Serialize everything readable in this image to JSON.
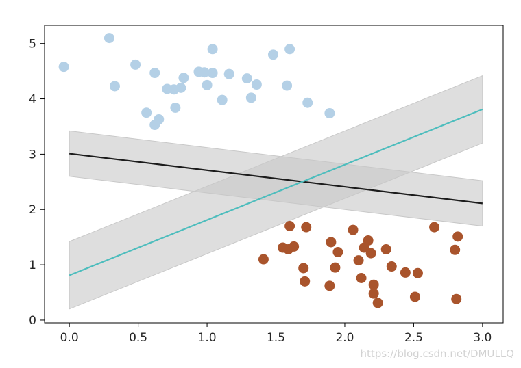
{
  "chart_data": {
    "type": "scatter",
    "xlim": [
      -0.18,
      3.15
    ],
    "ylim": [
      -0.05,
      5.33
    ],
    "x_ticks": [
      0.0,
      0.5,
      1.0,
      1.5,
      2.0,
      2.5,
      3.0
    ],
    "x_tick_labels": [
      "0.0",
      "0.5",
      "1.0",
      "1.5",
      "2.0",
      "2.5",
      "3.0"
    ],
    "y_ticks": [
      0,
      1,
      2,
      3,
      4,
      5
    ],
    "y_tick_labels": [
      "0",
      "1",
      "2",
      "3",
      "4",
      "5"
    ],
    "grid": false,
    "series": [
      {
        "kind": "scatter",
        "color": "#b4d0e6",
        "points": [
          [
            -0.04,
            4.58
          ],
          [
            0.29,
            5.1
          ],
          [
            0.33,
            4.23
          ],
          [
            0.48,
            4.62
          ],
          [
            0.56,
            3.75
          ],
          [
            0.62,
            4.47
          ],
          [
            0.62,
            3.53
          ],
          [
            0.65,
            3.63
          ],
          [
            0.71,
            4.18
          ],
          [
            0.76,
            4.17
          ],
          [
            0.77,
            3.84
          ],
          [
            0.81,
            4.2
          ],
          [
            0.83,
            4.38
          ],
          [
            0.94,
            4.49
          ],
          [
            0.98,
            4.48
          ],
          [
            1.0,
            4.25
          ],
          [
            1.04,
            4.9
          ],
          [
            1.04,
            4.47
          ],
          [
            1.11,
            3.98
          ],
          [
            1.16,
            4.45
          ],
          [
            1.29,
            4.37
          ],
          [
            1.32,
            4.02
          ],
          [
            1.36,
            4.26
          ],
          [
            1.48,
            4.8
          ],
          [
            1.58,
            4.24
          ],
          [
            1.6,
            4.9
          ],
          [
            1.73,
            3.93
          ],
          [
            1.89,
            3.74
          ]
        ]
      },
      {
        "kind": "scatter",
        "color": "#a9542c",
        "points": [
          [
            1.41,
            1.1
          ],
          [
            1.55,
            1.31
          ],
          [
            1.59,
            1.28
          ],
          [
            1.6,
            1.7
          ],
          [
            1.63,
            1.33
          ],
          [
            1.7,
            0.94
          ],
          [
            1.71,
            0.7
          ],
          [
            1.72,
            1.68
          ],
          [
            1.89,
            0.62
          ],
          [
            1.9,
            1.41
          ],
          [
            1.93,
            0.95
          ],
          [
            1.95,
            1.23
          ],
          [
            2.06,
            1.63
          ],
          [
            2.1,
            1.08
          ],
          [
            2.12,
            0.76
          ],
          [
            2.14,
            1.31
          ],
          [
            2.17,
            1.44
          ],
          [
            2.19,
            1.21
          ],
          [
            2.21,
            0.64
          ],
          [
            2.21,
            0.48
          ],
          [
            2.24,
            0.31
          ],
          [
            2.3,
            1.28
          ],
          [
            2.34,
            0.97
          ],
          [
            2.44,
            0.86
          ],
          [
            2.51,
            0.42
          ],
          [
            2.53,
            0.85
          ],
          [
            2.65,
            1.68
          ],
          [
            2.8,
            1.27
          ],
          [
            2.81,
            0.38
          ],
          [
            2.82,
            1.51
          ]
        ]
      },
      {
        "kind": "line",
        "color": "#1c1c1c",
        "x": [
          0.0,
          3.0
        ],
        "y": [
          3.01,
          2.11
        ],
        "band_lower": [
          2.6,
          1.7
        ],
        "band_upper": [
          3.42,
          2.52
        ]
      },
      {
        "kind": "line",
        "color": "#4dbdbd",
        "x": [
          0.0,
          3.0
        ],
        "y": [
          0.81,
          3.81
        ],
        "band_lower": [
          0.2,
          3.2
        ],
        "band_upper": [
          1.42,
          4.42
        ]
      }
    ],
    "band_color": "#c8c8c8"
  },
  "watermark": "https://blog.csdn.net/DMULLQ"
}
